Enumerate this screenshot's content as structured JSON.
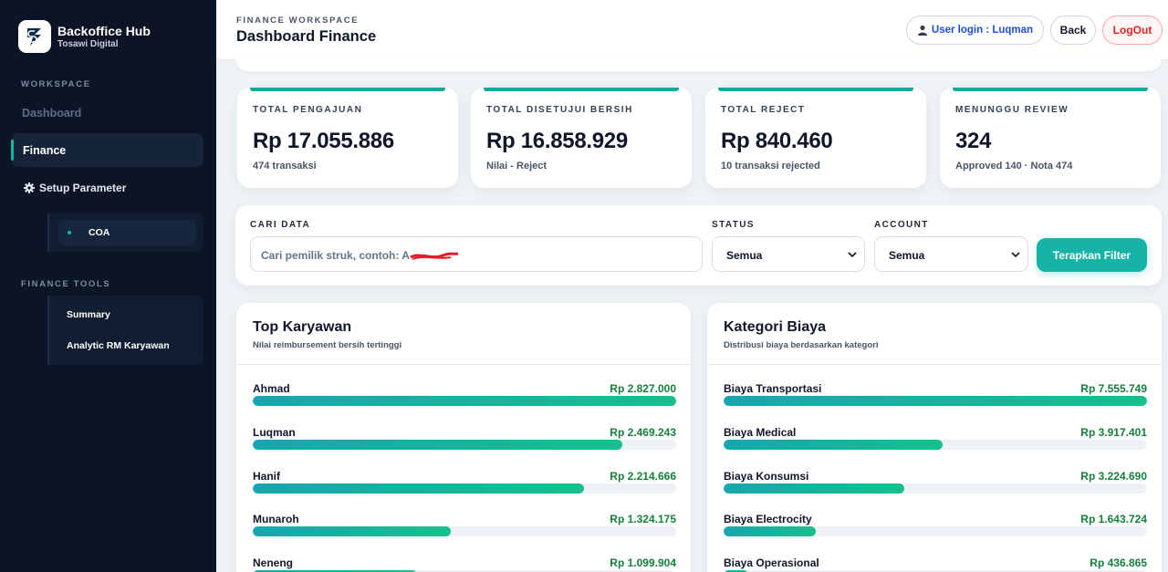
{
  "sidebar": {
    "brand_name": "Backoffice Hub",
    "brand_sub": "Tosawi Digital",
    "workspace_label": "WORKSPACE",
    "dashboard": "Dashboard",
    "finance": "Finance",
    "setup_parameter": "Setup Parameter",
    "coa": "COA",
    "tools_label": "FINANCE TOOLS",
    "tools": [
      "Summary",
      "Analytic RM Karyawan"
    ]
  },
  "header": {
    "kicker": "FINANCE WORKSPACE",
    "title": "Dashboard Finance",
    "user_login": "User login : Luqman",
    "back": "Back",
    "logout": "LogOut"
  },
  "stats": [
    {
      "label": "TOTAL PENGAJUAN",
      "value": "Rp 17.055.886",
      "sub": "474 transaksi"
    },
    {
      "label": "TOTAL DISETUJUI BERSIH",
      "value": "Rp 16.858.929",
      "sub": "Nilai - Reject"
    },
    {
      "label": "TOTAL REJECT",
      "value": "Rp 840.460",
      "sub": "10 transaksi rejected"
    },
    {
      "label": "MENUNGGU REVIEW",
      "value": "324",
      "sub": "Approved 140 · Nota 474"
    }
  ],
  "filter": {
    "search_label": "CARI DATA",
    "search_placeholder": "Cari pemilik struk, contoh: A",
    "status_label": "STATUS",
    "status_value": "Semua",
    "account_label": "ACCOUNT",
    "account_value": "Semua",
    "apply": "Terapkan Filter"
  },
  "top_karyawan": {
    "title": "Top Karyawan",
    "subtitle": "Nilai reimbursement bersih tertinggi",
    "items": [
      {
        "name": "Ahmad",
        "amount": "Rp 2.827.000",
        "share": 1.0
      },
      {
        "name": "Luqman",
        "amount": "Rp 2.469.243",
        "share": 0.873
      },
      {
        "name": "Hanif",
        "amount": "Rp 2.214.666",
        "share": 0.783
      },
      {
        "name": "Munaroh",
        "amount": "Rp 1.324.175",
        "share": 0.468
      },
      {
        "name": "Neneng",
        "amount": "Rp 1.099.904",
        "share": 0.389
      }
    ]
  },
  "kategori_biaya": {
    "title": "Kategori Biaya",
    "subtitle": "Distribusi biaya berdasarkan kategori",
    "items": [
      {
        "name": "Biaya Transportasi",
        "amount": "Rp 7.555.749",
        "share": 1.0
      },
      {
        "name": "Biaya Medical",
        "amount": "Rp 3.917.401",
        "share": 0.518
      },
      {
        "name": "Biaya Konsumsi",
        "amount": "Rp 3.224.690",
        "share": 0.427
      },
      {
        "name": "Biaya Electrocity",
        "amount": "Rp 1.643.724",
        "share": 0.218
      },
      {
        "name": "Biaya Operasional",
        "amount": "Rp 436.865",
        "share": 0.058
      }
    ]
  }
}
